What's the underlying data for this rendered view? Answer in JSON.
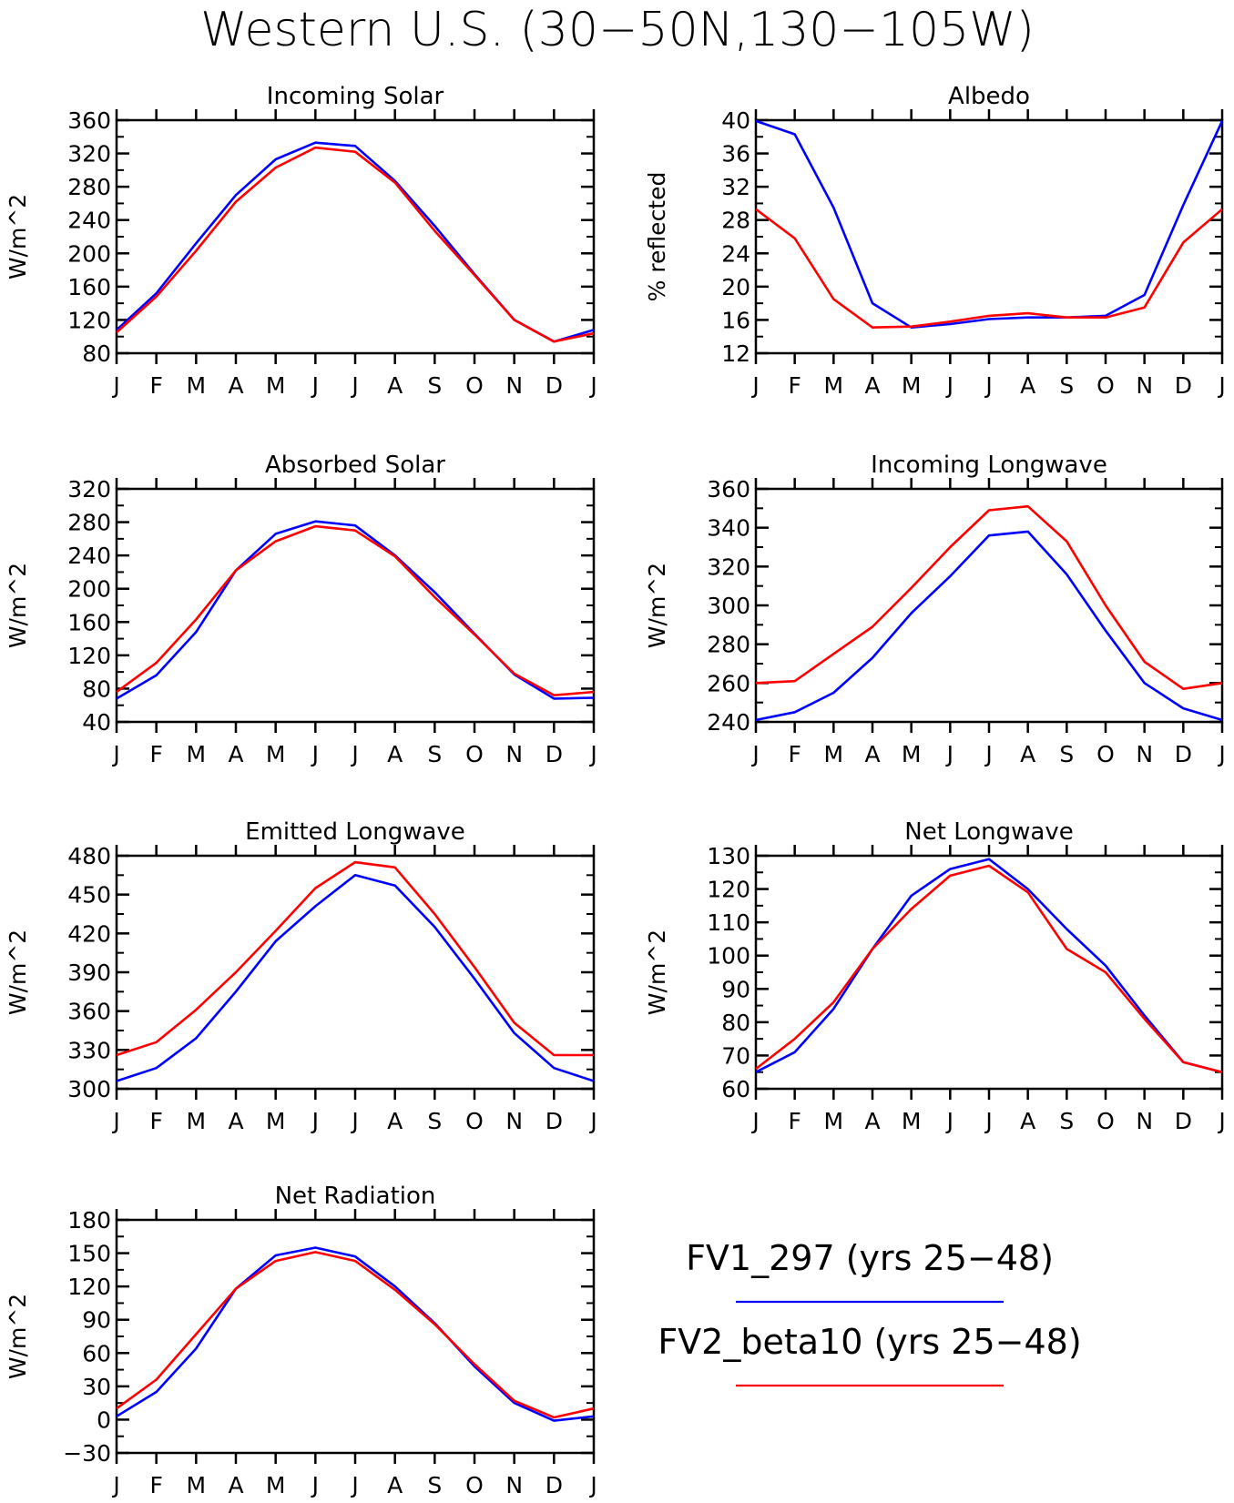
{
  "title": "Western U.S. (30−50N,130−105W)",
  "months": [
    "J",
    "F",
    "M",
    "A",
    "M",
    "J",
    "J",
    "A",
    "S",
    "O",
    "N",
    "D",
    "J"
  ],
  "colors": {
    "series1": "#0000ff",
    "series2": "#ff0000"
  },
  "legend": [
    {
      "label": "FV1_297 (yrs 25−48)",
      "color": "#0000ff"
    },
    {
      "label": "FV2_beta10 (yrs 25−48)",
      "color": "#ff0000"
    }
  ],
  "chart_data": [
    {
      "type": "line",
      "title": "Incoming Solar",
      "ylabel": "W/m^2",
      "xlabel": "",
      "ylim": [
        80,
        360
      ],
      "yticks": [
        80,
        120,
        160,
        200,
        240,
        280,
        320,
        360
      ],
      "categories": [
        "J",
        "F",
        "M",
        "A",
        "M",
        "J",
        "J",
        "A",
        "S",
        "O",
        "N",
        "D",
        "J"
      ],
      "series": [
        {
          "name": "FV1_297 (yrs 25−48)",
          "values": [
            108,
            152,
            212,
            270,
            313,
            333,
            329,
            287,
            233,
            175,
            120,
            94,
            108
          ]
        },
        {
          "name": "FV2_beta10 (yrs 25−48)",
          "values": [
            105,
            148,
            203,
            262,
            303,
            327,
            322,
            285,
            227,
            174,
            120,
            94,
            104
          ]
        }
      ]
    },
    {
      "type": "line",
      "title": "Albedo",
      "ylabel": "% reflected",
      "xlabel": "",
      "ylim": [
        12,
        40
      ],
      "yticks": [
        12,
        16,
        20,
        24,
        28,
        32,
        36,
        40
      ],
      "categories": [
        "J",
        "F",
        "M",
        "A",
        "M",
        "J",
        "J",
        "A",
        "S",
        "O",
        "N",
        "D",
        "J"
      ],
      "series": [
        {
          "name": "FV1_297 (yrs 25−48)",
          "values": [
            39.9,
            38.3,
            29.5,
            18.0,
            15.1,
            15.5,
            16.1,
            16.3,
            16.3,
            16.5,
            19.0,
            29.8,
            39.9
          ]
        },
        {
          "name": "FV2_beta10 (yrs 25−48)",
          "values": [
            29.3,
            25.8,
            18.5,
            15.1,
            15.2,
            15.8,
            16.5,
            16.8,
            16.3,
            16.3,
            17.5,
            25.3,
            29.3
          ]
        }
      ]
    },
    {
      "type": "line",
      "title": "Absorbed Solar",
      "ylabel": "W/m^2",
      "xlabel": "",
      "ylim": [
        40,
        320
      ],
      "yticks": [
        40,
        80,
        120,
        160,
        200,
        240,
        280,
        320
      ],
      "categories": [
        "J",
        "F",
        "M",
        "A",
        "M",
        "J",
        "J",
        "A",
        "S",
        "O",
        "N",
        "D",
        "J"
      ],
      "series": [
        {
          "name": "FV1_297 (yrs 25−48)",
          "values": [
            68,
            96,
            148,
            222,
            266,
            281,
            276,
            240,
            196,
            146,
            97,
            68,
            69
          ]
        },
        {
          "name": "FV2_beta10 (yrs 25−48)",
          "values": [
            76,
            111,
            163,
            222,
            257,
            275,
            270,
            239,
            190,
            145,
            98,
            72,
            76
          ]
        }
      ]
    },
    {
      "type": "line",
      "title": "Incoming Longwave",
      "ylabel": "W/m^2",
      "xlabel": "",
      "ylim": [
        240,
        360
      ],
      "yticks": [
        240,
        260,
        280,
        300,
        320,
        340,
        360
      ],
      "categories": [
        "J",
        "F",
        "M",
        "A",
        "M",
        "J",
        "J",
        "A",
        "S",
        "O",
        "N",
        "D",
        "J"
      ],
      "series": [
        {
          "name": "FV1_297 (yrs 25−48)",
          "values": [
            241,
            245,
            255,
            273,
            296,
            315,
            336,
            338,
            316,
            287,
            260,
            247,
            241
          ]
        },
        {
          "name": "FV2_beta10 (yrs 25−48)",
          "values": [
            260,
            261,
            275,
            289,
            309,
            330,
            349,
            351,
            333,
            300,
            271,
            257,
            260
          ]
        }
      ]
    },
    {
      "type": "line",
      "title": "Emitted Longwave",
      "ylabel": "W/m^2",
      "xlabel": "",
      "ylim": [
        300,
        480
      ],
      "yticks": [
        300,
        330,
        360,
        390,
        420,
        450,
        480
      ],
      "categories": [
        "J",
        "F",
        "M",
        "A",
        "M",
        "J",
        "J",
        "A",
        "S",
        "O",
        "N",
        "D",
        "J"
      ],
      "series": [
        {
          "name": "FV1_297 (yrs 25−48)",
          "values": [
            306,
            316,
            339,
            375,
            414,
            441,
            465,
            457,
            425,
            385,
            343,
            316,
            306
          ]
        },
        {
          "name": "FV2_beta10 (yrs 25−48)",
          "values": [
            326,
            336,
            361,
            390,
            422,
            455,
            475,
            471,
            435,
            394,
            351,
            326,
            326
          ]
        }
      ]
    },
    {
      "type": "line",
      "title": "Net Longwave",
      "ylabel": "W/m^2",
      "xlabel": "",
      "ylim": [
        60,
        130
      ],
      "yticks": [
        60,
        70,
        80,
        90,
        100,
        110,
        120,
        130
      ],
      "categories": [
        "J",
        "F",
        "M",
        "A",
        "M",
        "J",
        "J",
        "A",
        "S",
        "O",
        "N",
        "D",
        "J"
      ],
      "series": [
        {
          "name": "FV1_297 (yrs 25−48)",
          "values": [
            65,
            71,
            84,
            102,
            118,
            126,
            129,
            120,
            108,
            97,
            82,
            68,
            65
          ]
        },
        {
          "name": "FV2_beta10 (yrs 25−48)",
          "values": [
            66,
            75,
            86,
            102,
            114,
            124,
            127,
            119,
            102,
            95,
            81,
            68,
            65
          ]
        }
      ]
    },
    {
      "type": "line",
      "title": "Net Radiation",
      "ylabel": "W/m^2",
      "xlabel": "",
      "ylim": [
        -30,
        180
      ],
      "yticks": [
        -30,
        0,
        30,
        60,
        90,
        120,
        150,
        180
      ],
      "categories": [
        "J",
        "F",
        "M",
        "A",
        "M",
        "J",
        "J",
        "A",
        "S",
        "O",
        "N",
        "D",
        "J"
      ],
      "series": [
        {
          "name": "FV1_297 (yrs 25−48)",
          "values": [
            3,
            25,
            64,
            118,
            148,
            155,
            147,
            120,
            87,
            48,
            15,
            -1,
            3
          ]
        },
        {
          "name": "FV2_beta10 (yrs 25−48)",
          "values": [
            10,
            36,
            77,
            118,
            143,
            151,
            143,
            117,
            86,
            50,
            17,
            2,
            10
          ]
        }
      ]
    }
  ]
}
